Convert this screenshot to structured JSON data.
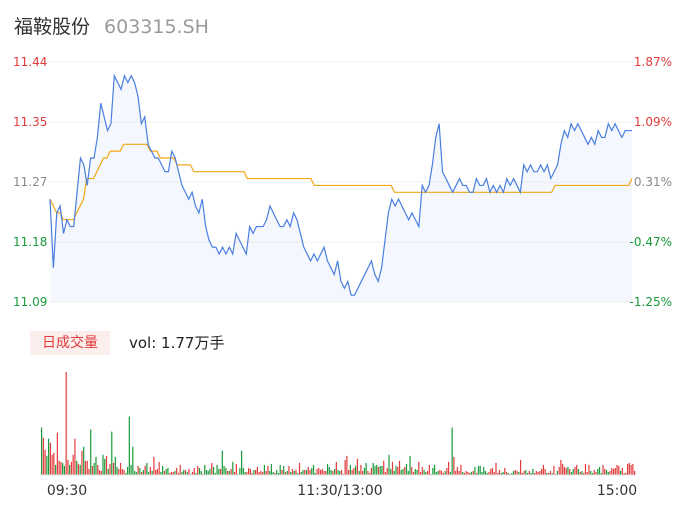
{
  "header": {
    "stock_name": "福鞍股份",
    "stock_code": "603315.SH"
  },
  "volume": {
    "tab_label": "日成交量",
    "summary": "vol: 1.77万手"
  },
  "colors": {
    "up": "#e23b3b",
    "down": "#1a9a3a",
    "neutral": "#8a8a8a",
    "price_line": "#4a7fe0",
    "avg_line": "#f0a818"
  },
  "chart_data": [
    {
      "type": "line",
      "title": "",
      "x_ticks": [
        "09:30",
        "11:30/13:00",
        "15:00"
      ],
      "ylim": [
        11.09,
        11.44
      ],
      "y_ticks": [
        "11.44",
        "11.35",
        "11.27",
        "11.18",
        "11.09"
      ],
      "y_ticks_right": [
        "1.87%",
        "1.09%",
        "0.31%",
        "-0.47%",
        "-1.25%"
      ],
      "series": [
        {
          "role": "price",
          "values": [
            11.24,
            11.14,
            11.22,
            11.23,
            11.19,
            11.21,
            11.2,
            11.2,
            11.25,
            11.3,
            11.29,
            11.26,
            11.3,
            11.3,
            11.33,
            11.38,
            11.36,
            11.34,
            11.35,
            11.42,
            11.41,
            11.4,
            11.42,
            11.41,
            11.42,
            11.41,
            11.39,
            11.35,
            11.36,
            11.32,
            11.31,
            11.3,
            11.3,
            11.29,
            11.28,
            11.28,
            11.31,
            11.3,
            11.28,
            11.26,
            11.25,
            11.24,
            11.25,
            11.23,
            11.22,
            11.24,
            11.2,
            11.18,
            11.17,
            11.17,
            11.16,
            11.17,
            11.16,
            11.17,
            11.16,
            11.19,
            11.18,
            11.17,
            11.16,
            11.2,
            11.19,
            11.2,
            11.2,
            11.2,
            11.21,
            11.23,
            11.22,
            11.21,
            11.2,
            11.2,
            11.21,
            11.2,
            11.22,
            11.21,
            11.19,
            11.17,
            11.16,
            11.15,
            11.16,
            11.15,
            11.16,
            11.17,
            11.15,
            11.14,
            11.13,
            11.15,
            11.12,
            11.11,
            11.12,
            11.1,
            11.1,
            11.11,
            11.12,
            11.13,
            11.14,
            11.15,
            11.13,
            11.12,
            11.14,
            11.18,
            11.22,
            11.24,
            11.23,
            11.24,
            11.23,
            11.22,
            11.21,
            11.22,
            11.21,
            11.2,
            11.26,
            11.25,
            11.26,
            11.29,
            11.33,
            11.35,
            11.28,
            11.27,
            11.26,
            11.25,
            11.26,
            11.27,
            11.26,
            11.26,
            11.25,
            11.25,
            11.27,
            11.26,
            11.26,
            11.27,
            11.25,
            11.26,
            11.25,
            11.26,
            11.25,
            11.27,
            11.26,
            11.27,
            11.26,
            11.25,
            11.29,
            11.28,
            11.29,
            11.28,
            11.28,
            11.29,
            11.28,
            11.29,
            11.27,
            11.28,
            11.29,
            11.32,
            11.34,
            11.33,
            11.35,
            11.34,
            11.35,
            11.34,
            11.33,
            11.32,
            11.33,
            11.32,
            11.34,
            11.33,
            11.33,
            11.35,
            11.34,
            11.35,
            11.34,
            11.33,
            11.34,
            11.34,
            11.34
          ]
        },
        {
          "role": "average",
          "values": [
            11.24,
            11.23,
            11.22,
            11.22,
            11.21,
            11.21,
            11.21,
            11.21,
            11.22,
            11.23,
            11.24,
            11.27,
            11.27,
            11.27,
            11.28,
            11.29,
            11.3,
            11.3,
            11.31,
            11.31,
            11.31,
            11.31,
            11.32,
            11.32,
            11.32,
            11.32,
            11.32,
            11.32,
            11.32,
            11.32,
            11.31,
            11.31,
            11.31,
            11.3,
            11.3,
            11.3,
            11.3,
            11.3,
            11.29,
            11.29,
            11.29,
            11.29,
            11.29,
            11.28,
            11.28,
            11.28,
            11.28,
            11.28,
            11.28,
            11.28,
            11.28,
            11.28,
            11.28,
            11.28,
            11.28,
            11.28,
            11.28,
            11.28,
            11.28,
            11.27,
            11.27,
            11.27,
            11.27,
            11.27,
            11.27,
            11.27,
            11.27,
            11.27,
            11.27,
            11.27,
            11.27,
            11.27,
            11.27,
            11.27,
            11.27,
            11.27,
            11.27,
            11.27,
            11.27,
            11.26,
            11.26,
            11.26,
            11.26,
            11.26,
            11.26,
            11.26,
            11.26,
            11.26,
            11.26,
            11.26,
            11.26,
            11.26,
            11.26,
            11.26,
            11.26,
            11.26,
            11.26,
            11.26,
            11.26,
            11.26,
            11.26,
            11.26,
            11.26,
            11.25,
            11.25,
            11.25,
            11.25,
            11.25,
            11.25,
            11.25,
            11.25,
            11.25,
            11.25,
            11.25,
            11.25,
            11.25,
            11.25,
            11.25,
            11.25,
            11.25,
            11.25,
            11.25,
            11.25,
            11.25,
            11.25,
            11.25,
            11.25,
            11.25,
            11.25,
            11.25,
            11.25,
            11.25,
            11.25,
            11.25,
            11.25,
            11.25,
            11.25,
            11.25,
            11.25,
            11.25,
            11.25,
            11.25,
            11.25,
            11.25,
            11.25,
            11.25,
            11.25,
            11.25,
            11.25,
            11.25,
            11.25,
            11.26,
            11.26,
            11.26,
            11.26,
            11.26,
            11.26,
            11.26,
            11.26,
            11.26,
            11.26,
            11.26,
            11.26,
            11.26,
            11.26,
            11.26,
            11.26,
            11.26,
            11.26,
            11.26,
            11.26,
            11.26,
            11.26,
            11.26,
            11.27
          ]
        }
      ]
    },
    {
      "type": "bar",
      "title": "",
      "values": [
        47,
        37,
        25,
        19,
        36,
        32,
        20,
        22,
        10,
        42,
        14,
        13,
        12,
        9,
        102,
        15,
        10,
        13,
        20,
        36,
        14,
        11,
        10,
        24,
        28,
        14,
        14,
        6,
        45,
        9,
        12,
        18,
        10,
        5,
        4,
        20,
        16,
        19,
        6,
        11,
        43,
        12,
        18,
        8,
        6,
        12,
        6,
        5,
        2,
        8,
        58,
        10,
        28,
        4,
        3,
        9,
        7,
        3,
        5,
        9,
        12,
        3,
        8,
        4,
        18,
        5,
        6,
        13,
        3,
        9,
        4,
        6,
        7,
        2,
        3,
        3,
        4,
        7,
        2,
        10,
        3,
        5,
        5,
        3,
        6,
        1,
        3,
        7,
        2,
        9,
        7,
        4,
        1,
        10,
        5,
        4,
        6,
        12,
        8,
        2,
        10,
        6,
        6,
        24,
        9,
        7,
        4,
        4,
        6,
        13,
        3,
        11,
        1,
        7,
        24,
        7,
        3,
        3,
        7,
        6,
        2,
        5,
        5,
        8,
        3,
        4,
        3,
        10,
        4,
        9,
        4,
        11,
        3,
        2,
        5,
        2,
        10,
        5,
        9,
        3,
        4,
        9,
        3,
        6,
        4,
        5,
        2,
        12,
        3,
        5,
        5,
        5,
        8,
        5,
        7,
        10,
        2,
        6,
        7,
        5,
        6,
        4,
        4,
        11,
        8,
        5,
        4,
        6,
        13,
        5,
        4,
        5,
        1,
        15,
        19,
        5,
        10,
        5,
        7,
        9,
        16,
        4,
        10,
        4,
        7,
        12,
        4,
        2,
        7,
        12,
        9,
        10,
        8,
        9,
        9,
        14,
        3,
        7,
        20,
        6,
        13,
        4,
        9,
        8,
        14,
        5,
        6,
        8,
        11,
        4,
        19,
        8,
        3,
        6,
        5,
        13,
        3,
        8,
        5,
        3,
        4,
        10,
        1,
        7,
        10,
        3,
        4,
        5,
        4,
        2,
        4,
        7,
        13,
        3,
        47,
        18,
        4,
        8,
        4,
        10,
        3,
        2,
        4,
        3,
        2,
        3,
        4,
        8,
        2,
        9,
        9,
        3,
        8,
        4,
        2,
        3,
        6,
        7,
        3,
        12,
        2,
        5,
        2,
        3,
        7,
        3,
        2,
        1,
        2,
        4,
        5,
        4,
        3,
        15,
        2,
        4,
        5,
        2,
        4,
        2,
        6,
        2,
        4,
        3,
        4,
        6,
        10,
        6,
        2,
        2,
        4,
        2,
        9,
        1,
        4,
        8,
        15,
        11,
        8,
        7,
        8,
        6,
        3,
        6,
        8,
        10,
        6,
        3,
        4,
        2,
        11,
        3,
        10,
        4,
        2,
        5,
        3,
        6,
        8,
        2,
        10,
        6,
        5,
        3,
        4,
        7,
        6,
        7,
        10,
        9,
        4,
        7,
        2,
        2,
        11,
        12,
        10,
        11,
        4
      ],
      "colors": [
        "down",
        "up",
        "up",
        "down",
        "down",
        "up",
        "up",
        "up",
        "down",
        "up",
        "up",
        "up",
        "down",
        "down",
        "up",
        "up",
        "down",
        "up",
        "up",
        "up",
        "down",
        "up",
        "down",
        "up",
        "down",
        "up",
        "up",
        "up",
        "down",
        "up",
        "down",
        "down",
        "up",
        "up",
        "up",
        "down",
        "down",
        "up",
        "down",
        "up",
        "down",
        "up",
        "down",
        "down",
        "up",
        "up",
        "up",
        "up",
        "down",
        "down",
        "down",
        "down",
        "down",
        "down",
        "down",
        "up",
        "down",
        "up",
        "down",
        "up",
        "down",
        "down",
        "up",
        "down",
        "up",
        "up",
        "up",
        "up",
        "down",
        "down",
        "up",
        "down",
        "down",
        "up",
        "up",
        "up",
        "down",
        "up",
        "up",
        "up",
        "down",
        "down",
        "up",
        "down",
        "up",
        "down",
        "up",
        "up",
        "down",
        "up",
        "down",
        "down",
        "up",
        "down",
        "down",
        "down",
        "down",
        "up",
        "down",
        "down",
        "down",
        "down",
        "up",
        "down",
        "down",
        "down",
        "up",
        "down",
        "up",
        "down",
        "up",
        "up",
        "down",
        "down",
        "down",
        "down",
        "down",
        "up",
        "up",
        "up",
        "up",
        "down",
        "up",
        "up",
        "up",
        "up",
        "up",
        "down",
        "up",
        "up",
        "down",
        "down",
        "down",
        "up",
        "down",
        "down",
        "down",
        "up",
        "down",
        "up",
        "down",
        "up",
        "down",
        "up",
        "down",
        "up",
        "down",
        "up",
        "down",
        "down",
        "up",
        "down",
        "up",
        "up",
        "down",
        "down",
        "down",
        "up",
        "up",
        "up",
        "up",
        "up",
        "up",
        "down",
        "down",
        "down",
        "up",
        "down",
        "up",
        "down",
        "down",
        "up",
        "up",
        "up",
        "up",
        "up",
        "down",
        "up",
        "up",
        "down",
        "up",
        "down",
        "up",
        "up",
        "down",
        "down",
        "up",
        "up",
        "up",
        "down",
        "down",
        "down",
        "up",
        "down",
        "down",
        "up",
        "up",
        "up",
        "down",
        "down",
        "up",
        "down",
        "down",
        "up",
        "up",
        "down",
        "down",
        "up",
        "down",
        "down",
        "down",
        "up",
        "up",
        "down",
        "down",
        "up",
        "up",
        "up",
        "down",
        "down",
        "up",
        "up",
        "down",
        "down",
        "down",
        "down",
        "down",
        "up",
        "up",
        "up",
        "down",
        "up",
        "up",
        "down",
        "down",
        "up",
        "up",
        "up",
        "up",
        "up",
        "down",
        "up",
        "up",
        "up",
        "up",
        "down",
        "up",
        "down",
        "up",
        "down",
        "down",
        "down",
        "down",
        "down",
        "down",
        "up",
        "up",
        "up",
        "up",
        "up",
        "up",
        "up",
        "down",
        "down",
        "up",
        "up",
        "down",
        "up",
        "down",
        "down",
        "up",
        "up",
        "down",
        "up",
        "up",
        "up",
        "down",
        "down",
        "up",
        "down",
        "down",
        "up",
        "up",
        "up",
        "up",
        "up",
        "up",
        "up",
        "down",
        "up",
        "up",
        "down",
        "up",
        "up",
        "down",
        "up",
        "up",
        "up",
        "up",
        "up",
        "down",
        "up",
        "down",
        "down",
        "up",
        "up",
        "down",
        "up",
        "down",
        "up",
        "up",
        "up",
        "up",
        "down",
        "down",
        "up",
        "up",
        "down",
        "down",
        "down",
        "up",
        "up",
        "down",
        "down",
        "up",
        "up",
        "up",
        "up",
        "up",
        "up",
        "down",
        "up",
        "up",
        "up",
        "up",
        "up",
        "up"
      ]
    }
  ]
}
